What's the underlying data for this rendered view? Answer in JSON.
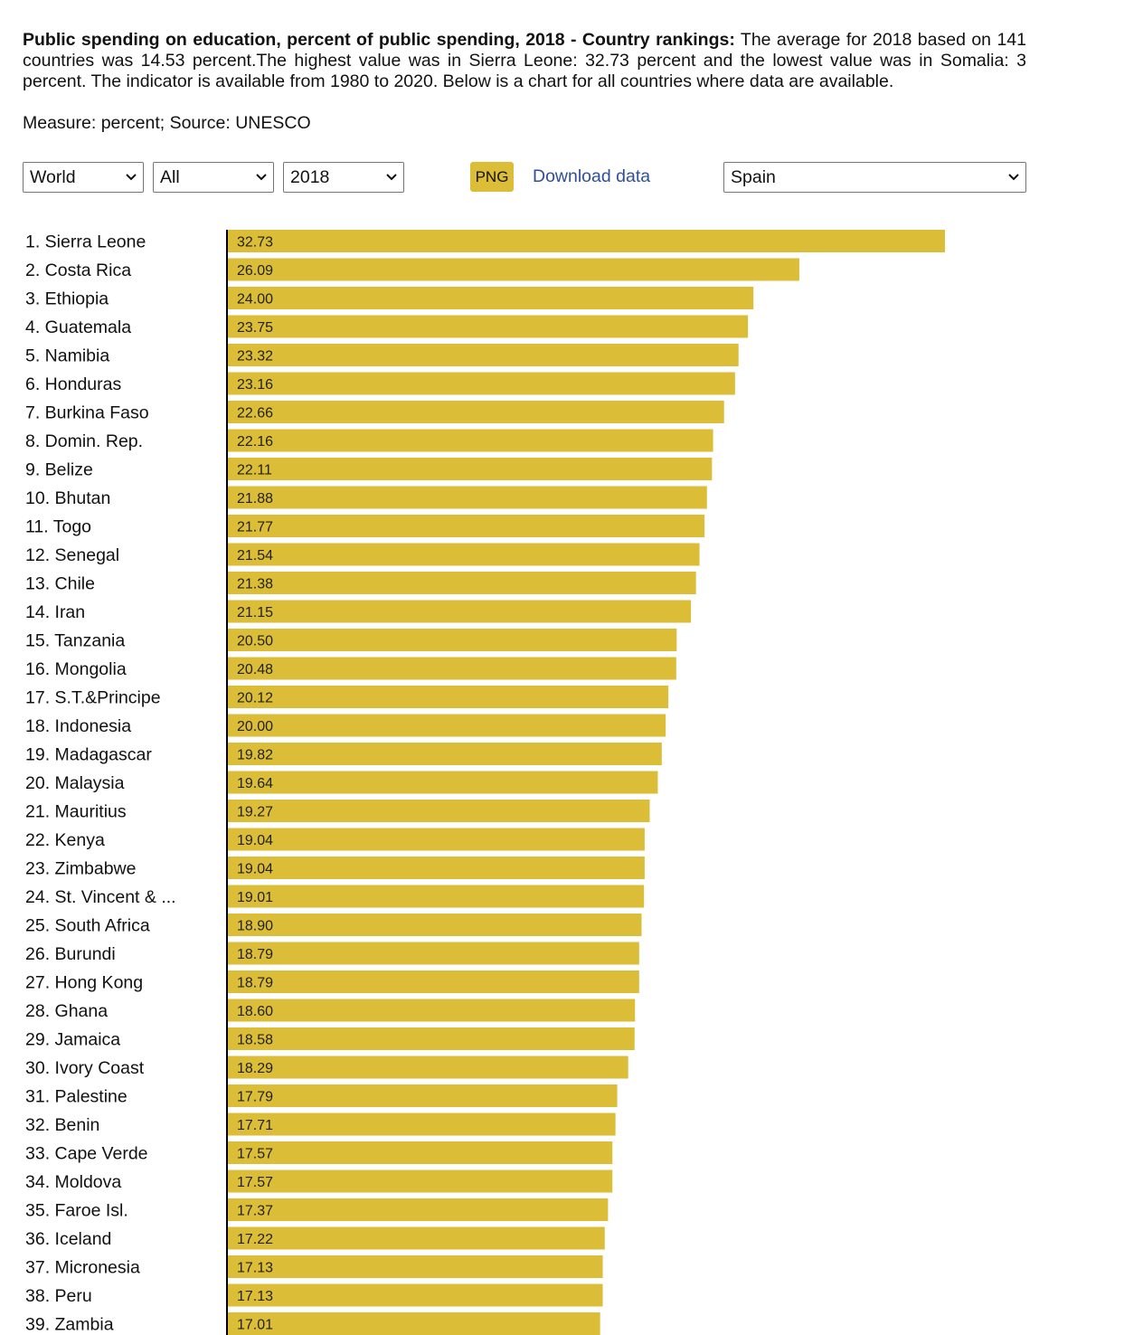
{
  "intro": {
    "heading": "Public spending on education, percent of public spending, 2018 - Country rankings:",
    "text": " The average for 2018 based on 141 countries was 14.53 percent.The highest value was in Sierra Leone: 32.73 percent and the lowest value was in Somalia: 3 percent. The indicator is available from 1980 to 2020. Below is a chart for all countries where data are available."
  },
  "measure": "Measure: percent; Source: UNESCO",
  "controls": {
    "region": "World",
    "group": "All",
    "year": "2018",
    "png_label": "PNG",
    "download_label": "Download data",
    "country": "Spain"
  },
  "colors": {
    "bar": "#dbbd37",
    "axis": "#000000",
    "link": "#2f4f99"
  },
  "chart_data": {
    "type": "bar",
    "orientation": "horizontal",
    "categories": [
      "1. Sierra Leone",
      "2. Costa Rica",
      "3. Ethiopia",
      "4. Guatemala",
      "5. Namibia",
      "6. Honduras",
      "7. Burkina Faso",
      "8. Domin. Rep.",
      "9. Belize",
      "10. Bhutan",
      "11. Togo",
      "12. Senegal",
      "13. Chile",
      "14. Iran",
      "15. Tanzania",
      "16. Mongolia",
      "17. S.T.&Principe",
      "18. Indonesia",
      "19. Madagascar",
      "20. Malaysia",
      "21. Mauritius",
      "22. Kenya",
      "23. Zimbabwe",
      "24. St. Vincent & ...",
      "25. South Africa",
      "26. Burundi",
      "27. Hong Kong",
      "28. Ghana",
      "29. Jamaica",
      "30. Ivory Coast",
      "31. Palestine",
      "32. Benin",
      "33. Cape Verde",
      "34. Moldova",
      "35. Faroe Isl.",
      "36. Iceland",
      "37. Micronesia",
      "38. Peru",
      "39. Zambia"
    ],
    "values": [
      32.73,
      26.09,
      24.0,
      23.75,
      23.32,
      23.16,
      22.66,
      22.16,
      22.11,
      21.88,
      21.77,
      21.54,
      21.38,
      21.15,
      20.5,
      20.48,
      20.12,
      20.0,
      19.82,
      19.64,
      19.27,
      19.04,
      19.04,
      19.01,
      18.9,
      18.79,
      18.79,
      18.6,
      18.58,
      18.29,
      17.79,
      17.71,
      17.57,
      17.57,
      17.37,
      17.22,
      17.13,
      17.13,
      17.01
    ],
    "value_labels": [
      "32.73",
      "26.09",
      "24.00",
      "23.75",
      "23.32",
      "23.16",
      "22.66",
      "22.16",
      "22.11",
      "21.88",
      "21.77",
      "21.54",
      "21.38",
      "21.15",
      "20.50",
      "20.48",
      "20.12",
      "20.00",
      "19.82",
      "19.64",
      "19.27",
      "19.04",
      "19.04",
      "19.01",
      "18.90",
      "18.79",
      "18.79",
      "18.60",
      "18.58",
      "18.29",
      "17.79",
      "17.71",
      "17.57",
      "17.57",
      "17.37",
      "17.22",
      "17.13",
      "17.13",
      "17.01"
    ],
    "xlim": [
      0,
      32.73
    ],
    "grid": false,
    "legend": "none"
  }
}
